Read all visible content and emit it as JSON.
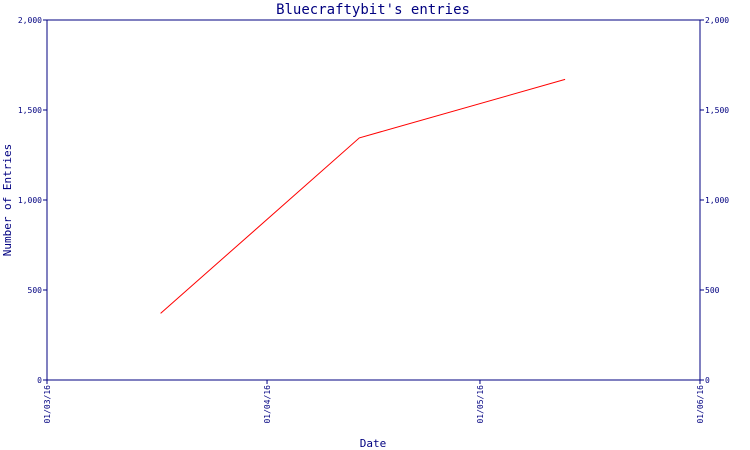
{
  "chart_data": {
    "type": "line",
    "title": "Bluecraftybit's entries",
    "xlabel": "Date",
    "ylabel": "Number of Entries",
    "x_ticks": [
      "01/03/16",
      "01/04/16",
      "01/05/16",
      "01/06/16"
    ],
    "y_ticks": [
      "0",
      "500",
      "1,000",
      "1,500",
      "2,000"
    ],
    "ylim": [
      0,
      2000
    ],
    "xlim": [
      "2016-03-01",
      "2016-06-01"
    ],
    "grid": false,
    "legend": "none",
    "series": [
      {
        "color": "#ff0000",
        "points": [
          {
            "x": "2016-03-17",
            "y": 370
          },
          {
            "x": "2016-04-14",
            "y": 1345
          },
          {
            "x": "2016-05-13",
            "y": 1670
          }
        ]
      }
    ],
    "colors": {
      "axis": "#000080",
      "line": "#ff0000",
      "background": "#ffffff"
    }
  }
}
